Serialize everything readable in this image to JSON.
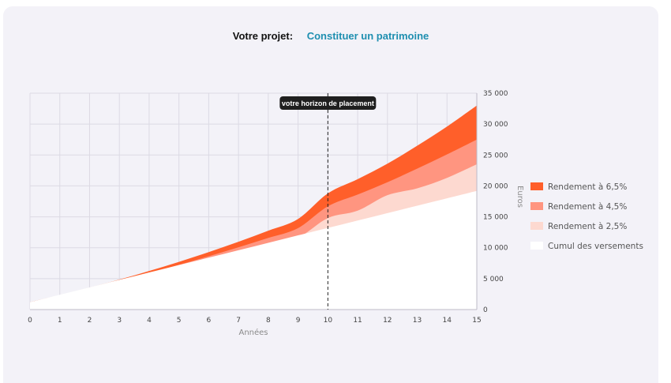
{
  "header": {
    "project_label": "Votre projet:",
    "project_value": "Constituer un patrimoine"
  },
  "chart_data": {
    "type": "area",
    "title": "",
    "xlabel": "Années",
    "ylabel": "Euros",
    "x": [
      0,
      1,
      2,
      3,
      4,
      5,
      6,
      7,
      8,
      9,
      10,
      11,
      12,
      13,
      14,
      15
    ],
    "xlim": [
      0,
      15
    ],
    "ylim": [
      0,
      35000
    ],
    "x_ticks": [
      "0",
      "1",
      "2",
      "3",
      "4",
      "5",
      "6",
      "7",
      "8",
      "9",
      "10",
      "11",
      "12",
      "13",
      "14",
      "15"
    ],
    "y_ticks": [
      {
        "value": 0,
        "label": "0"
      },
      {
        "value": 5000,
        "label": "5 000"
      },
      {
        "value": 10000,
        "label": "10 000"
      },
      {
        "value": 15000,
        "label": "15 000"
      },
      {
        "value": 20000,
        "label": "20 000"
      },
      {
        "value": 25000,
        "label": "25 000"
      },
      {
        "value": 30000,
        "label": "30 000"
      },
      {
        "value": 35000,
        "label": "35 000"
      }
    ],
    "grid": true,
    "y_axis_side": "right",
    "legend_position": "right",
    "series": [
      {
        "name": "Rendement à 6,5%",
        "color": "#ff5f2a",
        "values": [
          1200,
          2340,
          3560,
          4850,
          6250,
          7720,
          9290,
          10970,
          12760,
          14660,
          18800,
          21100,
          23600,
          26500,
          29600,
          33000
        ]
      },
      {
        "name": "Rendement à 4,5%",
        "color": "#ff9580",
        "values": [
          1200,
          2290,
          3440,
          4650,
          5910,
          7230,
          8620,
          10070,
          11590,
          13180,
          16700,
          18600,
          20600,
          22800,
          25100,
          27500
        ]
      },
      {
        "name": "Rendement à 2,5%",
        "color": "#fdd9d0",
        "values": [
          1200,
          2240,
          3310,
          4410,
          5540,
          6690,
          7880,
          9090,
          10330,
          11600,
          14800,
          16000,
          18500,
          19600,
          21300,
          23500
        ]
      },
      {
        "name": "Cumul des versements",
        "color": "#ffffff",
        "values": [
          1200,
          2400,
          3600,
          4800,
          6000,
          7200,
          8400,
          9600,
          10800,
          12000,
          13200,
          14400,
          15600,
          16800,
          18000,
          19200
        ]
      }
    ],
    "annotations": [
      {
        "type": "vline",
        "x": 10,
        "label": "votre horizon de placement"
      }
    ]
  }
}
